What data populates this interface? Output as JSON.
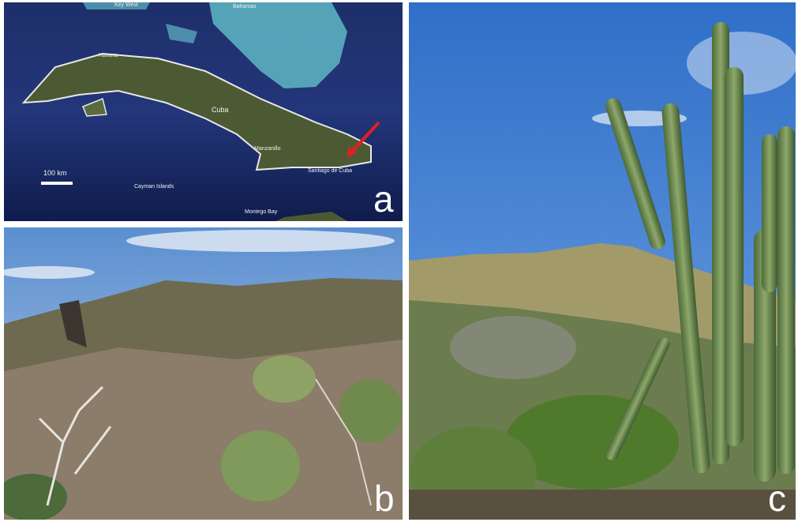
{
  "panels": [
    {
      "label": "a",
      "scale_bar": "100 km",
      "map_labels": [
        "Key West",
        "Bahamas",
        "Havana",
        "Cuba",
        "Manzanillo",
        "Santiago de Cuba",
        "Cayman Islands",
        "Montego Bay"
      ]
    },
    {
      "label": "b"
    },
    {
      "label": "c"
    }
  ]
}
